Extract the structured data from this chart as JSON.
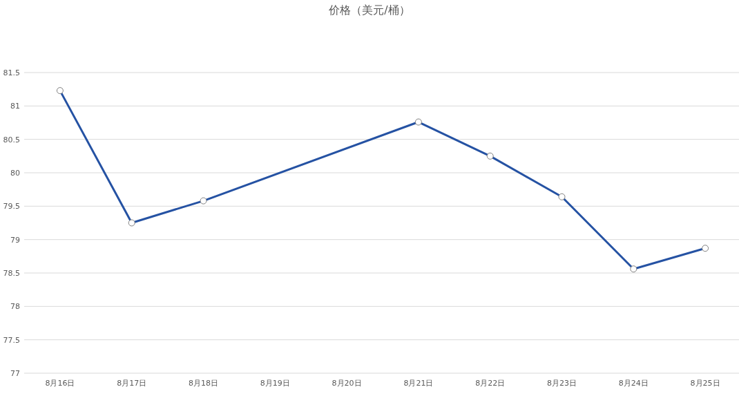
{
  "chart_data": {
    "type": "line",
    "title": "价格（美元/桶）",
    "categories": [
      "8月16日",
      "8月17日",
      "8月18日",
      "8月19日",
      "8月20日",
      "8月21日",
      "8月22日",
      "8月23日",
      "8月24日",
      "8月25日"
    ],
    "series": [
      {
        "color": "#2552a3",
        "values": [
          81.23,
          79.25,
          79.58,
          null,
          null,
          80.76,
          80.25,
          79.64,
          78.56,
          78.87
        ]
      }
    ],
    "ylim": [
      77,
      81.5
    ],
    "yticks": [
      77,
      77.5,
      78,
      78.5,
      79,
      79.5,
      80,
      80.5,
      81,
      81.5
    ],
    "grid": "y",
    "marker": "circle",
    "line_style": "solid"
  }
}
